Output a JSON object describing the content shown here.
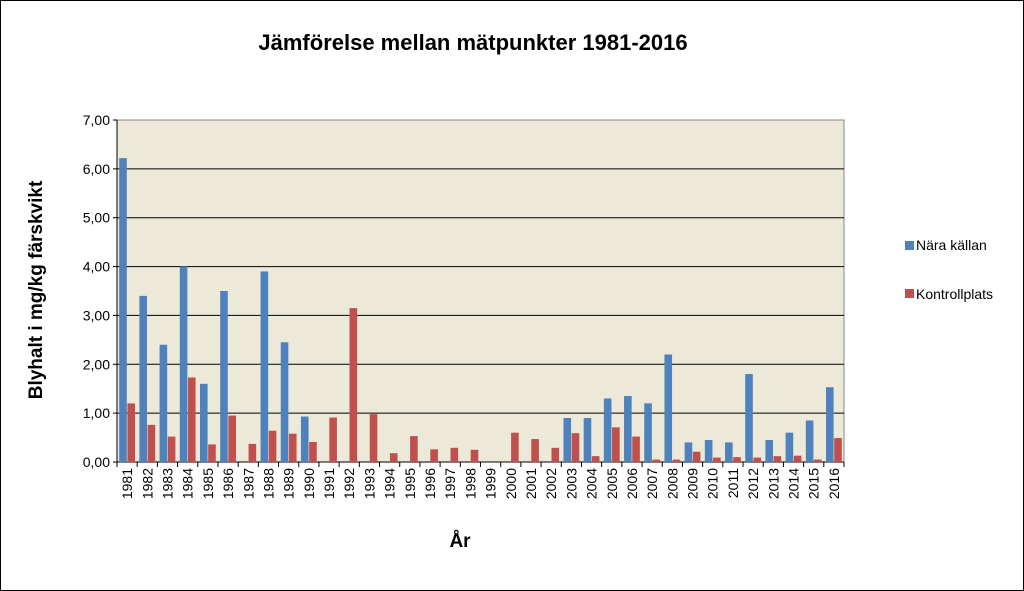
{
  "chart_data": {
    "type": "bar",
    "title": "Jämförelse mellan mätpunkter 1981-2016",
    "xlabel": "År",
    "ylabel": "Blyhalt  i mg/kg färskvikt",
    "ylim": [
      0,
      7
    ],
    "yticks": [
      "0,00",
      "1,00",
      "2,00",
      "3,00",
      "4,00",
      "5,00",
      "6,00",
      "7,00"
    ],
    "grid": true,
    "legend_position": "right",
    "plot_background": "#ece9d9",
    "categories": [
      "1981",
      "1982",
      "1983",
      "1984",
      "1985",
      "1986",
      "1987",
      "1988",
      "1989",
      "1990",
      "1991",
      "1992",
      "1993",
      "1994",
      "1995",
      "1996",
      "1997",
      "1998",
      "1999",
      "2000",
      "2001",
      "2002",
      "2003",
      "2004",
      "2005",
      "2006",
      "2007",
      "2008",
      "2009",
      "2010",
      "2011",
      "2012",
      "2013",
      "2014",
      "2015",
      "2016"
    ],
    "series": [
      {
        "name": "Nära källan",
        "color": "#4f81bd",
        "values": [
          6.22,
          3.4,
          2.4,
          4.0,
          1.6,
          3.5,
          null,
          3.9,
          2.45,
          0.93,
          null,
          null,
          null,
          null,
          null,
          null,
          null,
          null,
          null,
          null,
          null,
          null,
          0.9,
          0.9,
          1.3,
          1.35,
          1.2,
          2.2,
          0.4,
          0.45,
          0.4,
          1.8,
          0.45,
          0.6,
          0.85,
          1.53
        ]
      },
      {
        "name": "Kontrollplats",
        "color": "#c0504d",
        "values": [
          1.2,
          0.76,
          0.52,
          1.73,
          0.36,
          0.95,
          0.37,
          0.64,
          0.58,
          0.41,
          0.91,
          3.15,
          0.98,
          0.18,
          0.53,
          0.26,
          0.29,
          0.25,
          null,
          0.6,
          0.47,
          0.29,
          0.59,
          0.12,
          0.71,
          0.52,
          0.05,
          0.05,
          0.21,
          0.09,
          0.1,
          0.09,
          0.12,
          0.13,
          0.05,
          0.49
        ]
      }
    ]
  }
}
